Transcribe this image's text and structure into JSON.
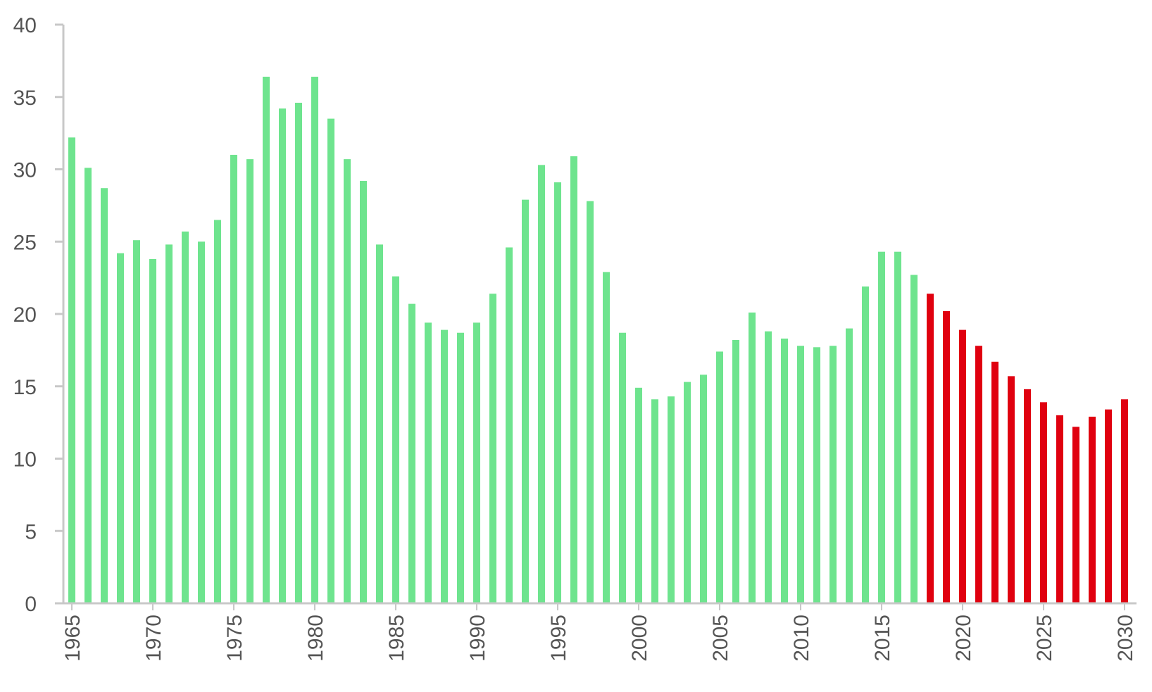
{
  "chart_data": {
    "type": "bar",
    "title": "",
    "xlabel": "",
    "ylabel": "",
    "ylim": [
      0,
      40
    ],
    "yticks": [
      0,
      5,
      10,
      15,
      20,
      25,
      30,
      35,
      40
    ],
    "xtick_labels": [
      "1965",
      "1970",
      "1975",
      "1980",
      "1985",
      "1990",
      "1995",
      "2000",
      "2005",
      "2010",
      "2015",
      "2020",
      "2025",
      "2030"
    ],
    "grid": false,
    "legend": "none",
    "colors": {
      "historical": "#6ee48e",
      "forecast": "#e0000f",
      "axis": "#c8c8c8",
      "text": "#555555"
    },
    "series": [
      {
        "x": [
          1965,
          1966,
          1967,
          1968,
          1969,
          1970,
          1971,
          1972,
          1973,
          1974,
          1975,
          1976,
          1977,
          1978,
          1979,
          1980,
          1981,
          1982,
          1983,
          1984,
          1985,
          1986,
          1987,
          1988,
          1989,
          1990,
          1991,
          1992,
          1993,
          1994,
          1995,
          1996,
          1997,
          1998,
          1999,
          2000,
          2001,
          2002,
          2003,
          2004,
          2005,
          2006,
          2007,
          2008,
          2009,
          2010,
          2011,
          2012,
          2013,
          2014,
          2015,
          2016,
          2017
        ],
        "values": [
          32.2,
          30.1,
          28.7,
          24.2,
          25.1,
          23.8,
          24.8,
          25.7,
          25.0,
          26.5,
          31.0,
          30.7,
          36.4,
          34.2,
          34.6,
          36.4,
          33.5,
          30.7,
          29.2,
          24.8,
          22.6,
          20.7,
          19.4,
          18.9,
          18.7,
          19.4,
          21.4,
          24.6,
          27.9,
          30.3,
          29.1,
          30.9,
          27.8,
          22.9,
          18.7,
          14.9,
          14.1,
          14.3,
          15.3,
          15.8,
          17.4,
          18.2,
          20.1,
          18.8,
          18.3,
          17.8,
          17.7,
          17.8,
          19.0,
          21.9,
          24.3,
          24.3,
          22.7
        ]
      },
      {
        "x": [
          2018,
          2019,
          2020,
          2021,
          2022,
          2023,
          2024,
          2025,
          2026,
          2027,
          2028,
          2029,
          2030
        ],
        "values": [
          21.4,
          20.2,
          18.9,
          17.8,
          16.7,
          15.7,
          14.8,
          13.9,
          13.0,
          12.2,
          12.9,
          13.4,
          14.1
        ]
      }
    ]
  }
}
